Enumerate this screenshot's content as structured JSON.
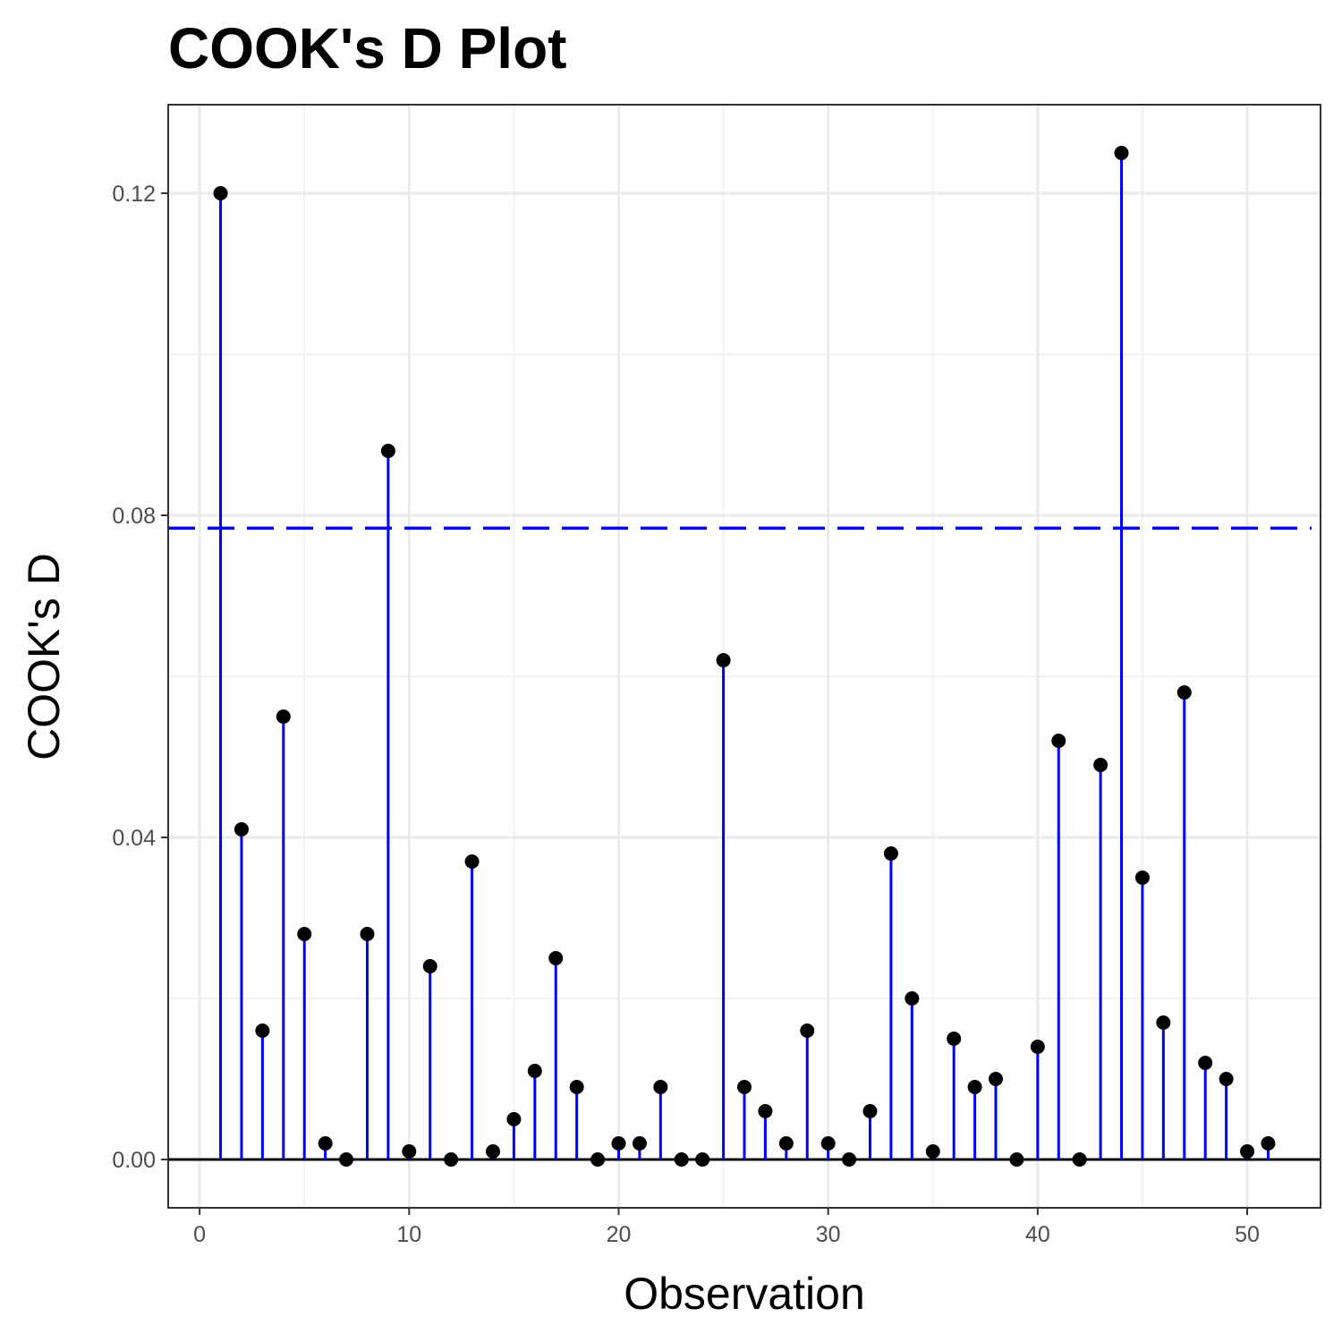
{
  "chart_data": {
    "type": "scatter",
    "style": "lollipop",
    "title": "COOK's D Plot",
    "xlabel": "Observation",
    "ylabel": "COOK's D",
    "xlim": [
      -1.5,
      53.5
    ],
    "ylim": [
      -0.006,
      0.131
    ],
    "xticks": [
      0,
      10,
      20,
      30,
      40,
      50
    ],
    "xtick_labels": [
      "0",
      "10",
      "20",
      "30",
      "40",
      "50"
    ],
    "yticks": [
      0.0,
      0.04,
      0.08,
      0.12
    ],
    "ytick_labels": [
      "0.00",
      "0.04",
      "0.08",
      "0.12"
    ],
    "grid": true,
    "threshold": 0.0784,
    "colors": {
      "stem": "#0000ff",
      "point": "#000000",
      "threshold": "#0000ff",
      "baseline": "#000000"
    },
    "x": [
      1,
      2,
      3,
      4,
      5,
      6,
      7,
      8,
      9,
      10,
      11,
      12,
      13,
      14,
      15,
      16,
      17,
      18,
      19,
      20,
      21,
      22,
      23,
      24,
      25,
      26,
      27,
      28,
      29,
      30,
      31,
      32,
      33,
      34,
      35,
      36,
      37,
      38,
      39,
      40,
      41,
      42,
      43,
      44,
      45,
      46,
      47,
      48,
      49,
      50,
      51
    ],
    "y": [
      0.12,
      0.041,
      0.016,
      0.055,
      0.028,
      0.002,
      0.0,
      0.028,
      0.088,
      0.001,
      0.024,
      0.0,
      0.037,
      0.001,
      0.005,
      0.011,
      0.025,
      0.009,
      0.0,
      0.002,
      0.002,
      0.009,
      0.0,
      0.0,
      0.062,
      0.009,
      0.006,
      0.002,
      0.016,
      0.002,
      0.0,
      0.006,
      0.038,
      0.02,
      0.001,
      0.015,
      0.009,
      0.01,
      0.0,
      0.014,
      0.052,
      0.0,
      0.049,
      0.125,
      0.035,
      0.017,
      0.058,
      0.012,
      0.01,
      0.001,
      0.002
    ]
  }
}
